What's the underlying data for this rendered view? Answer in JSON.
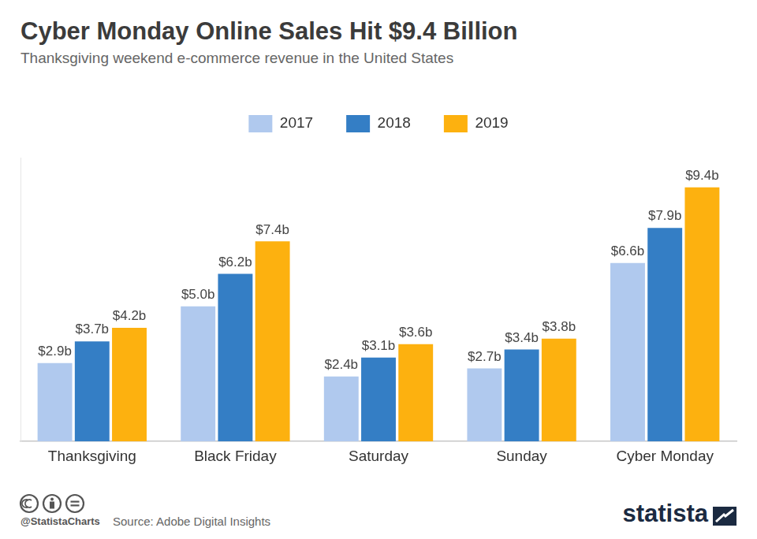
{
  "chart_data": {
    "type": "bar",
    "title": "Cyber Monday Online Sales Hit $9.4 Billion",
    "subtitle": "Thanksgiving weekend e-commerce revenue in the United States",
    "categories": [
      "Thanksgiving",
      "Black Friday",
      "Saturday",
      "Sunday",
      "Cyber Monday"
    ],
    "series": [
      {
        "name": "2017",
        "color": "#b0c9ee",
        "values": [
          2.9,
          5.0,
          2.4,
          2.7,
          6.6
        ],
        "value_labels": [
          "$2.9b",
          "$5.0b",
          "$2.4b",
          "$2.7b",
          "$6.6b"
        ]
      },
      {
        "name": "2018",
        "color": "#347ec5",
        "values": [
          3.7,
          6.2,
          3.1,
          3.4,
          7.9
        ],
        "value_labels": [
          "$3.7b",
          "$6.2b",
          "$3.1b",
          "$3.4b",
          "$7.9b"
        ]
      },
      {
        "name": "2019",
        "color": "#fdb10f",
        "values": [
          4.2,
          7.4,
          3.6,
          3.8,
          9.4
        ],
        "value_labels": [
          "$4.2b",
          "$7.4b",
          "$3.6b",
          "$3.8b",
          "$9.4b"
        ]
      }
    ],
    "ylim": [
      0,
      10.5
    ],
    "legend": "top",
    "grid": false,
    "data_labels": true,
    "tick_labels": "x",
    "credit": "@StatistaCharts",
    "source": "Source: Adobe Digital Insights",
    "brand": "statista"
  }
}
